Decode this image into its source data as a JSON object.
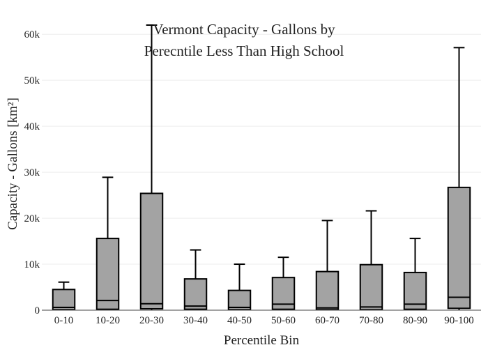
{
  "chart_data": {
    "type": "box",
    "title_line1": "Vermont Capacity - Gallons by",
    "title_line2": "Perecntile Less Than High School",
    "xlabel": "Percentile Bin",
    "ylabel": "Capacity - Gallons  [km²]",
    "ylim": [
      0,
      62000
    ],
    "y_ticks": [
      {
        "value": 0,
        "label": "0"
      },
      {
        "value": 10000,
        "label": "10k"
      },
      {
        "value": 20000,
        "label": "20k"
      },
      {
        "value": 30000,
        "label": "30k"
      },
      {
        "value": 40000,
        "label": "40k"
      },
      {
        "value": 50000,
        "label": "50k"
      },
      {
        "value": 60000,
        "label": "60k"
      }
    ],
    "categories": [
      "0-10",
      "10-20",
      "20-30",
      "30-40",
      "40-50",
      "50-60",
      "60-70",
      "70-80",
      "80-90",
      "90-100"
    ],
    "boxes": [
      {
        "min": 0,
        "q1": 100,
        "median": 600,
        "q3": 4500,
        "max": 6100
      },
      {
        "min": 0,
        "q1": 200,
        "median": 2100,
        "q3": 15600,
        "max": 28900
      },
      {
        "min": 0,
        "q1": 300,
        "median": 1400,
        "q3": 25400,
        "max": 62000
      },
      {
        "min": 0,
        "q1": 200,
        "median": 900,
        "q3": 6800,
        "max": 13100
      },
      {
        "min": 0,
        "q1": 100,
        "median": 600,
        "q3": 4300,
        "max": 10000
      },
      {
        "min": 0,
        "q1": 200,
        "median": 1300,
        "q3": 7100,
        "max": 11500
      },
      {
        "min": 0,
        "q1": 100,
        "median": 500,
        "q3": 8400,
        "max": 19500
      },
      {
        "min": 0,
        "q1": 100,
        "median": 700,
        "q3": 9900,
        "max": 21600
      },
      {
        "min": 0,
        "q1": 200,
        "median": 1300,
        "q3": 8200,
        "max": 15600
      },
      {
        "min": 0,
        "q1": 400,
        "median": 2800,
        "q3": 26700,
        "max": 57100
      }
    ],
    "grid": true,
    "legend": "none",
    "colors": {
      "box_fill": "#a3a3a3",
      "box_stroke": "#000000",
      "grid": "#eeeeee",
      "axis": "#444444"
    }
  }
}
